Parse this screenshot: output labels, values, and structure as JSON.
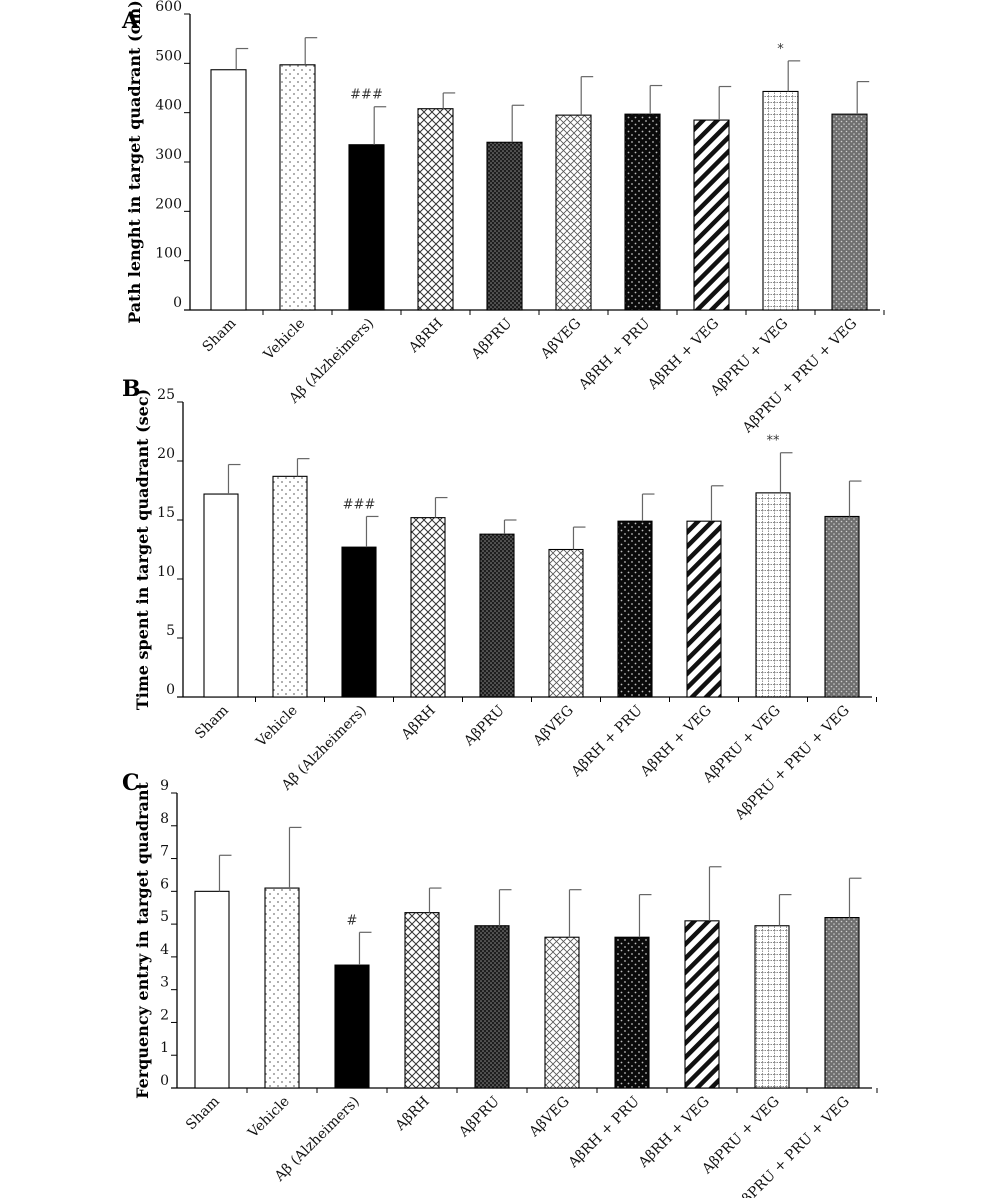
{
  "chart_data": [
    {
      "panel": "A",
      "type": "bar",
      "ylabel": "Path lenght in target quadrant (cm)",
      "ylim": [
        0,
        600
      ],
      "yticks": [
        0,
        100,
        200,
        300,
        400,
        500,
        600
      ],
      "categories": [
        "Sham",
        "Vehicle",
        "Aβ (Alzheimers)",
        "AβRH",
        "AβPRU",
        "AβVEG",
        "AβRH + PRU",
        "AβRH + VEG",
        "AβPRU + VEG",
        "AβPRU + PRU + VEG"
      ],
      "values": [
        487,
        497,
        335,
        408,
        340,
        395,
        397,
        385,
        443,
        397
      ],
      "errors": [
        43,
        55,
        77,
        32,
        75,
        78,
        58,
        68,
        62,
        66
      ],
      "annotations": [
        "",
        "",
        "###",
        "",
        "",
        "",
        "",
        "",
        "*",
        ""
      ],
      "patterns": [
        "white",
        "dots",
        "black",
        "crosshatch",
        "dark-dots",
        "crosshatch-light",
        "black-dots",
        "diagonal",
        "grid",
        "gray-dots"
      ]
    },
    {
      "panel": "B",
      "type": "bar",
      "ylabel": "Time spent in target quadrant (sec)",
      "ylim": [
        0,
        25
      ],
      "yticks": [
        0,
        5,
        10,
        15,
        20,
        25
      ],
      "categories": [
        "Sham",
        "Vehicle",
        "Aβ (Alzheimers)",
        "AβRH",
        "AβPRU",
        "AβVEG",
        "AβRH + PRU",
        "AβRH + VEG",
        "AβPRU + VEG",
        "AβPRU + PRU + VEG"
      ],
      "values": [
        17.2,
        18.7,
        12.7,
        15.2,
        13.8,
        12.5,
        14.9,
        14.9,
        17.3,
        15.3
      ],
      "errors": [
        2.5,
        1.5,
        2.6,
        1.7,
        1.2,
        1.9,
        2.3,
        3.0,
        3.4,
        3.0
      ],
      "annotations": [
        "",
        "",
        "###",
        "",
        "",
        "",
        "",
        "",
        "**",
        ""
      ],
      "patterns": [
        "white",
        "dots",
        "black",
        "crosshatch",
        "dark-dots",
        "crosshatch-light",
        "black-dots",
        "diagonal",
        "grid",
        "gray-dots"
      ]
    },
    {
      "panel": "C",
      "type": "bar",
      "ylabel": "Ferquency entry in target quadrant",
      "ylim": [
        0,
        9
      ],
      "yticks": [
        0,
        1,
        2,
        3,
        4,
        5,
        6,
        7,
        8,
        9
      ],
      "categories": [
        "Sham",
        "Vehicle",
        "Aβ (Alzheimers)",
        "AβRH",
        "AβPRU",
        "AβVEG",
        "AβRH + PRU",
        "AβRH + VEG",
        "AβPRU + VEG",
        "AβPRU + PRU + VEG"
      ],
      "values": [
        6.0,
        6.1,
        3.75,
        5.35,
        4.95,
        4.6,
        4.6,
        5.1,
        4.95,
        5.2
      ],
      "errors": [
        1.1,
        1.85,
        1.0,
        0.75,
        1.1,
        1.45,
        1.3,
        1.65,
        0.95,
        1.2
      ],
      "annotations": [
        "",
        "",
        "#",
        "",
        "",
        "",
        "",
        "",
        "",
        ""
      ],
      "patterns": [
        "white",
        "dots",
        "black",
        "crosshatch",
        "dark-dots",
        "crosshatch-light",
        "black-dots",
        "diagonal",
        "grid",
        "gray-dots"
      ]
    }
  ]
}
